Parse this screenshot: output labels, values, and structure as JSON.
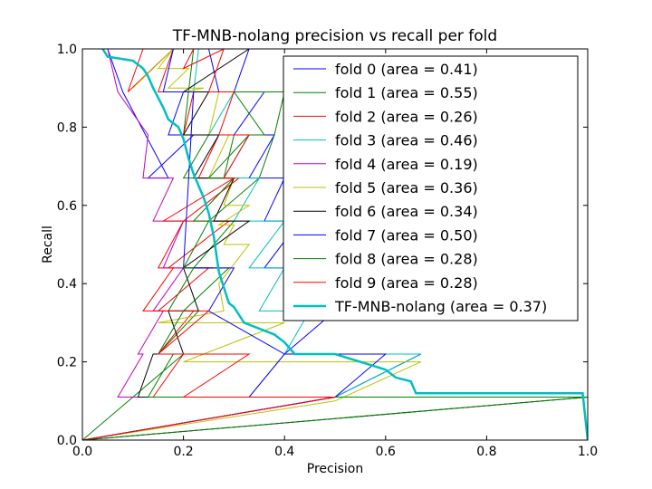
{
  "chart_data": {
    "type": "line",
    "title": "TF-MNB-nolang precision vs recall per fold",
    "xlabel": "Precision",
    "ylabel": "Recall",
    "xlim": [
      0,
      1
    ],
    "ylim": [
      0,
      1
    ],
    "xticks": [
      "0.0",
      "0.2",
      "0.4",
      "0.6",
      "0.8",
      "1.0"
    ],
    "yticks": [
      "0.0",
      "0.2",
      "0.4",
      "0.6",
      "0.8",
      "1.0"
    ],
    "grid": false,
    "legend_position": "top-right",
    "series": [
      {
        "name": "fold 0 (area = 0.41)",
        "color": "#0000ff",
        "width": 1,
        "x": [
          0.0,
          0.5,
          0.67,
          0.4,
          0.5,
          0.4,
          0.45,
          0.36,
          0.43,
          0.36,
          0.4,
          0.33,
          0.38,
          0.3,
          0.36,
          0.3,
          0.33,
          0.25,
          0.27,
          0.2,
          0.17,
          0.22,
          0.13,
          0.17,
          0.08,
          0.05
        ],
        "y": [
          0.0,
          0.11,
          0.22,
          0.22,
          0.33,
          0.33,
          0.44,
          0.44,
          0.56,
          0.56,
          0.67,
          0.67,
          0.78,
          0.78,
          0.89,
          0.89,
          1.0,
          1.0,
          0.89,
          0.89,
          0.78,
          0.78,
          0.67,
          0.67,
          0.89,
          1.0
        ]
      },
      {
        "name": "fold 1 (area = 0.55)",
        "color": "#008000",
        "width": 1,
        "x": [
          0.0,
          0.1,
          0.2,
          0.15,
          0.23,
          0.2,
          0.29,
          0.22,
          0.3,
          0.25,
          0.35,
          0.38,
          0.4,
          0.31,
          0.38,
          0.3,
          0.36,
          0.3,
          0.28,
          0.2,
          0.25,
          0.2,
          0.22
        ],
        "y": [
          0.0,
          0.11,
          0.22,
          0.22,
          0.33,
          0.33,
          0.44,
          0.44,
          0.56,
          0.56,
          0.67,
          0.78,
          0.89,
          0.89,
          0.89,
          0.89,
          0.78,
          0.78,
          0.67,
          0.67,
          0.78,
          0.78,
          1.0
        ]
      },
      {
        "name": "fold 2 (area = 0.26)",
        "color": "#ff0000",
        "width": 1,
        "x": [
          0.0,
          0.5,
          0.14,
          0.2,
          0.15,
          0.22,
          0.15,
          0.25,
          0.17,
          0.29,
          0.2,
          0.31,
          0.23,
          0.27,
          0.2,
          0.22,
          0.15,
          0.18,
          0.09,
          0.12
        ],
        "y": [
          0.0,
          0.11,
          0.11,
          0.22,
          0.22,
          0.33,
          0.33,
          0.44,
          0.44,
          0.56,
          0.56,
          0.67,
          0.67,
          0.78,
          0.78,
          0.89,
          0.89,
          1.0,
          0.89,
          1.0
        ]
      },
      {
        "name": "fold 3 (area = 0.46)",
        "color": "#00bfbf",
        "width": 1,
        "x": [
          0.0,
          0.5,
          0.67,
          0.4,
          0.45,
          0.35,
          0.4,
          0.33,
          0.4,
          0.3,
          0.35,
          0.28,
          0.33,
          0.25,
          0.3,
          0.22,
          0.23
        ],
        "y": [
          0.0,
          0.11,
          0.22,
          0.22,
          0.33,
          0.33,
          0.44,
          0.44,
          0.56,
          0.56,
          0.67,
          0.67,
          0.78,
          0.78,
          0.89,
          0.89,
          1.0
        ]
      },
      {
        "name": "fold 4 (area = 0.19)",
        "color": "#bf00bf",
        "width": 1,
        "x": [
          0.0,
          0.5,
          0.07,
          0.12,
          0.11,
          0.16,
          0.14,
          0.2,
          0.16,
          0.2,
          0.14,
          0.18,
          0.12,
          0.13,
          0.07,
          0.05
        ],
        "y": [
          0.0,
          0.11,
          0.11,
          0.22,
          0.22,
          0.33,
          0.33,
          0.44,
          0.44,
          0.56,
          0.56,
          0.67,
          0.67,
          0.78,
          0.89,
          1.0
        ]
      },
      {
        "name": "fold 5 (area = 0.36)",
        "color": "#bfbf00",
        "width": 1,
        "x": [
          0.0,
          0.5,
          0.67,
          0.2,
          0.4,
          0.15,
          0.28,
          0.27,
          0.33,
          0.28,
          0.3,
          0.27,
          0.33,
          0.28,
          0.3,
          0.25,
          0.29,
          0.25,
          0.27,
          0.2,
          0.24,
          0.17,
          0.21,
          0.15,
          0.18,
          0.1
        ],
        "y": [
          0.0,
          0.1,
          0.2,
          0.2,
          0.3,
          0.3,
          0.33,
          0.4,
          0.5,
          0.5,
          0.55,
          0.55,
          0.6,
          0.6,
          0.67,
          0.67,
          0.78,
          0.78,
          0.89,
          0.89,
          0.9,
          0.9,
          0.95,
          0.95,
          1.0,
          0.9
        ]
      },
      {
        "name": "fold 6 (area = 0.34)",
        "color": "#000000",
        "width": 1,
        "x": [
          0.0,
          1.0,
          0.11,
          0.14,
          0.2,
          0.17,
          0.23,
          0.2,
          0.26,
          0.2,
          0.33,
          0.26,
          0.3,
          0.22,
          0.27,
          0.2,
          0.25,
          0.2,
          0.33
        ],
        "y": [
          0.0,
          0.11,
          0.11,
          0.22,
          0.22,
          0.33,
          0.33,
          0.44,
          0.44,
          0.44,
          0.56,
          0.56,
          0.67,
          0.67,
          0.78,
          0.78,
          0.89,
          0.89,
          1.0
        ]
      },
      {
        "name": "fold 7 (area = 0.50)",
        "color": "#0000ff",
        "width": 1,
        "x": [
          0.0,
          0.5,
          0.6,
          0.4,
          0.33,
          0.4,
          0.25,
          0.3,
          0.2,
          0.22,
          0.16,
          0.18
        ],
        "y": [
          0.0,
          0.11,
          0.22,
          0.22,
          0.11,
          0.22,
          0.33,
          0.44,
          0.44,
          0.89,
          0.89,
          1.0
        ]
      },
      {
        "name": "fold 8 (area = 0.28)",
        "color": "#008000",
        "width": 1,
        "x": [
          0.0,
          1.0,
          0.13,
          0.18,
          0.15,
          0.2,
          0.17,
          0.22,
          0.2,
          0.25,
          0.22,
          0.3,
          0.25,
          0.33
        ],
        "y": [
          0.0,
          0.11,
          0.11,
          0.22,
          0.22,
          0.33,
          0.33,
          0.44,
          0.44,
          0.56,
          0.56,
          0.67,
          0.67,
          0.78
        ]
      },
      {
        "name": "fold 9 (area = 0.28)",
        "color": "#ff0000",
        "width": 1,
        "x": [
          0.0,
          0.5,
          0.2,
          0.33,
          0.15,
          0.25,
          0.12,
          0.18,
          0.15,
          0.2,
          0.16,
          0.3,
          0.28,
          0.33,
          0.27,
          0.3,
          0.25,
          0.28,
          0.2,
          0.22
        ],
        "y": [
          0.0,
          0.11,
          0.11,
          0.22,
          0.22,
          0.33,
          0.33,
          0.44,
          0.44,
          0.56,
          0.56,
          0.67,
          0.67,
          0.78,
          0.78,
          0.89,
          0.89,
          1.0,
          0.95,
          1.0
        ]
      },
      {
        "name": "TF-MNB-nolang (area = 0.37)",
        "color": "#00bfbf",
        "width": 2.5,
        "x": [
          0.04,
          0.05,
          0.1,
          0.12,
          0.13,
          0.14,
          0.16,
          0.17,
          0.19,
          0.2,
          0.21,
          0.22,
          0.24,
          0.25,
          0.26,
          0.27,
          0.29,
          0.3,
          0.32,
          0.38,
          0.4,
          0.42,
          0.5,
          0.55,
          0.6,
          0.62,
          0.65,
          0.66,
          0.99,
          1.0
        ],
        "y": [
          1.0,
          0.98,
          0.97,
          0.95,
          0.93,
          0.9,
          0.85,
          0.82,
          0.8,
          0.77,
          0.72,
          0.68,
          0.62,
          0.58,
          0.52,
          0.43,
          0.35,
          0.34,
          0.3,
          0.27,
          0.25,
          0.22,
          0.22,
          0.2,
          0.18,
          0.16,
          0.15,
          0.12,
          0.12,
          0.0
        ]
      }
    ]
  }
}
